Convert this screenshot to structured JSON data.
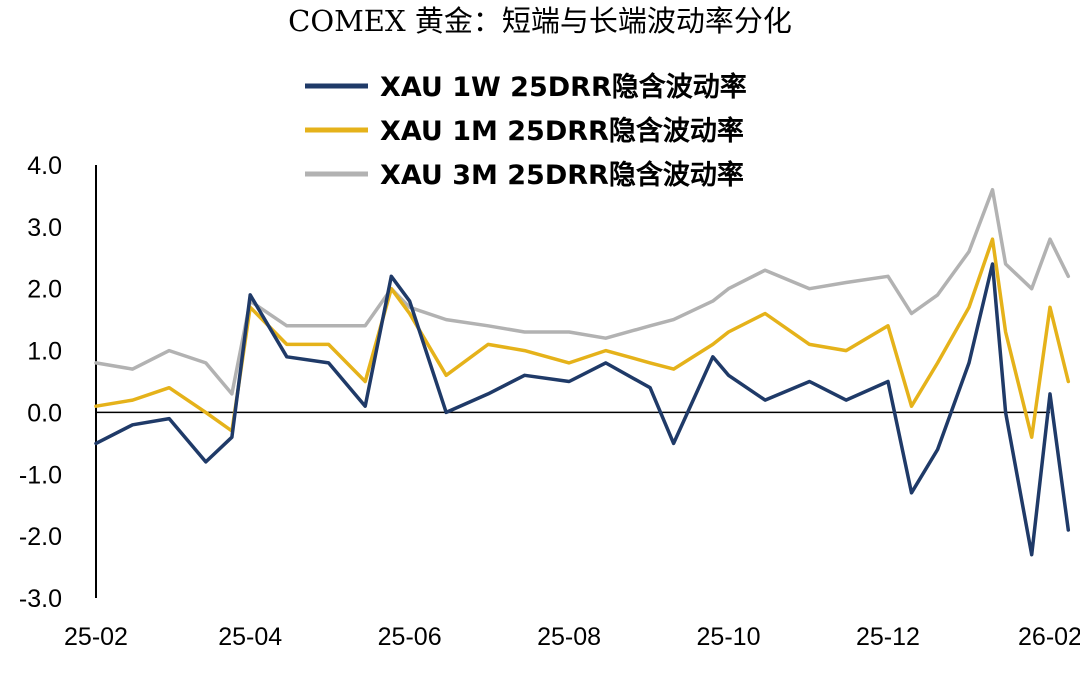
{
  "chart_data": {
    "type": "line",
    "title": "COMEX 黄金：短端与长端波动率分化",
    "xlabel": "",
    "ylabel": "",
    "x_ticks": [
      "25-02",
      "25-04",
      "25-06",
      "25-08",
      "25-10",
      "25-12",
      "26-02"
    ],
    "ylim": [
      -3.0,
      4.0
    ],
    "y_ticks": [
      "4.0",
      "3.0",
      "2.0",
      "1.0",
      "0.0",
      "-1.0",
      "-2.0",
      "-3.0"
    ],
    "grid": false,
    "legend_position": "top",
    "dates": [
      "2025-02-01",
      "2025-02-15",
      "2025-03-01",
      "2025-03-15",
      "2025-03-25",
      "2025-04-01",
      "2025-04-15",
      "2025-05-01",
      "2025-05-15",
      "2025-05-25",
      "2025-06-01",
      "2025-06-15",
      "2025-07-01",
      "2025-07-15",
      "2025-08-01",
      "2025-08-15",
      "2025-09-01",
      "2025-09-10",
      "2025-09-25",
      "2025-10-01",
      "2025-10-15",
      "2025-11-01",
      "2025-11-15",
      "2025-12-01",
      "2025-12-10",
      "2025-12-20",
      "2026-01-01",
      "2026-01-10",
      "2026-01-15",
      "2026-01-25",
      "2026-02-01",
      "2026-02-08"
    ],
    "series": [
      {
        "name": "XAU 1W 25DRR隐含波动率",
        "color": "#1f3a68",
        "values": [
          -0.5,
          -0.2,
          -0.1,
          -0.8,
          -0.4,
          1.9,
          0.9,
          0.8,
          0.1,
          2.2,
          1.8,
          0.0,
          0.3,
          0.6,
          0.5,
          0.8,
          0.4,
          -0.5,
          0.9,
          0.6,
          0.2,
          0.5,
          0.2,
          0.5,
          -1.3,
          -0.6,
          0.8,
          2.4,
          0.0,
          -2.3,
          0.3,
          -1.9
        ]
      },
      {
        "name": "XAU 1M 25DRR隐含波动率",
        "color": "#e5b21a",
        "values": [
          0.1,
          0.2,
          0.4,
          0.0,
          -0.3,
          1.7,
          1.1,
          1.1,
          0.5,
          2.0,
          1.6,
          0.6,
          1.1,
          1.0,
          0.8,
          1.0,
          0.8,
          0.7,
          1.1,
          1.3,
          1.6,
          1.1,
          1.0,
          1.4,
          0.1,
          0.8,
          1.7,
          2.8,
          1.3,
          -0.4,
          1.7,
          0.5
        ]
      },
      {
        "name": "XAU 3M 25DRR隐含波动率",
        "color": "#b2b2b2",
        "values": [
          0.8,
          0.7,
          1.0,
          0.8,
          0.3,
          1.8,
          1.4,
          1.4,
          1.4,
          2.0,
          1.7,
          1.5,
          1.4,
          1.3,
          1.3,
          1.2,
          1.4,
          1.5,
          1.8,
          2.0,
          2.3,
          2.0,
          2.1,
          2.2,
          1.6,
          1.9,
          2.6,
          3.6,
          2.4,
          2.0,
          2.8,
          2.2
        ]
      }
    ]
  }
}
